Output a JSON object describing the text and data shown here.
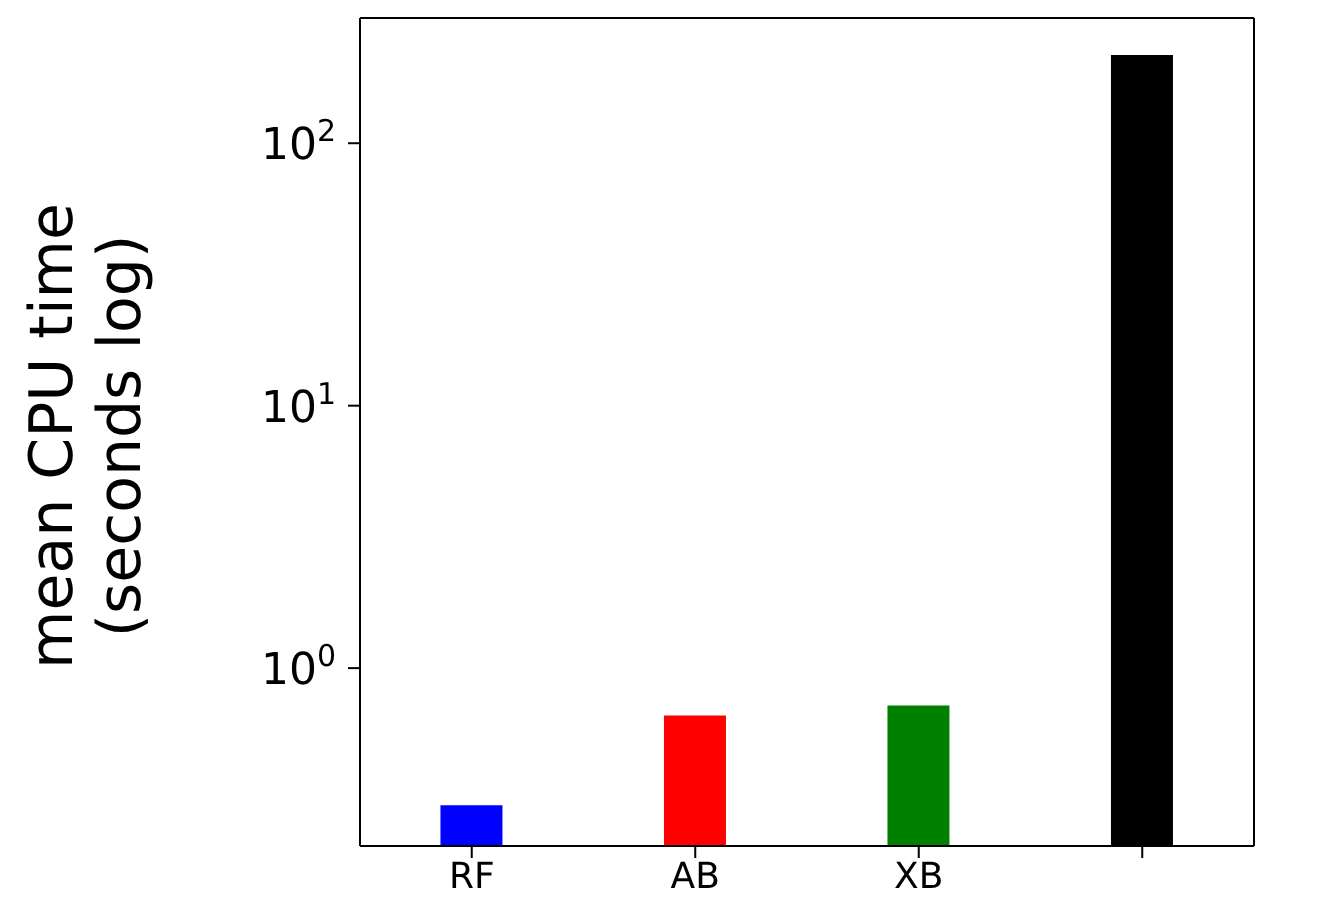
{
  "chart_data": {
    "type": "bar",
    "ylabel": "mean CPU time\n(seconds log)",
    "categories": [
      "RF",
      "AB",
      "XB",
      null
    ],
    "values": [
      0.3,
      0.66,
      0.72,
      217
    ],
    "colors": [
      "#0000ff",
      "#ff0000",
      "#008000",
      "#000000"
    ],
    "log": true,
    "ylim": [
      0.21,
      300
    ],
    "yticks": [
      {
        "value": 1,
        "label": "10$^{0}$"
      },
      {
        "value": 10,
        "label": "10$^{1}$"
      },
      {
        "value": 100,
        "label": "10$^{2}$"
      }
    ],
    "grid": false,
    "legend": false
  }
}
